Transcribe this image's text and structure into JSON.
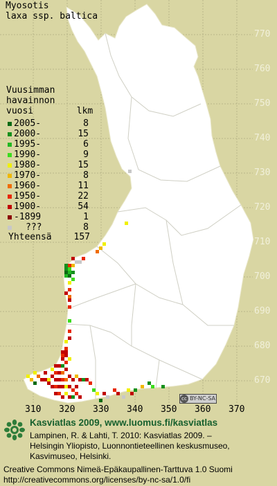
{
  "species": {
    "line1": "Myosotis",
    "line2": "laxa ssp. baltica"
  },
  "legend": {
    "header": [
      "Vuusimman",
      "havainnon",
      "vuosi        lkm"
    ],
    "rows": [
      {
        "label": "2005-",
        "count": "8",
        "color": "#0a6a14"
      },
      {
        "label": "2000-",
        "count": "15",
        "color": "#14901c"
      },
      {
        "label": "1995-",
        "count": "6",
        "color": "#22b822"
      },
      {
        "label": "1990-",
        "count": "9",
        "color": "#3cdc1e"
      },
      {
        "label": "1980-",
        "count": "15",
        "color": "#f0f000"
      },
      {
        "label": "1970-",
        "count": "8",
        "color": "#f0b800"
      },
      {
        "label": "1960-",
        "count": "11",
        "color": "#f06c00"
      },
      {
        "label": "1950-",
        "count": "22",
        "color": "#e82800"
      },
      {
        "label": "1900-",
        "count": "54",
        "color": "#c00000"
      },
      {
        "label": "-1899",
        "count": "1",
        "color": "#8a0000"
      },
      {
        "label": "???",
        "count": "8",
        "color": "#c8c8c8"
      }
    ],
    "total_label": "Yhteensä",
    "total_count": "157"
  },
  "y_ticks": [
    "770",
    "760",
    "750",
    "740",
    "730",
    "720",
    "710",
    "700",
    "690",
    "680",
    "670"
  ],
  "x_ticks": [
    "310",
    "320",
    "330",
    "340",
    "350",
    "360",
    "370"
  ],
  "license_badge": {
    "symbol": "cc",
    "text": "BY-NC-SA"
  },
  "footer": {
    "title": "Kasviatlas 2009, www.luomus.fi/kasviatlas",
    "citation": [
      "Lampinen, R. & Lahti, T. 2010: Kasviatlas 2009. –",
      "Helsingin Yliopisto, Luonnontieteellinen keskusmuseo,",
      "Kasvimuseo, Helsinki."
    ],
    "license": [
      "Creative Commons Nimeä-Epäkaupallinen-Tarttuva 1.0 Suomi",
      "http://creativecommons.org/licenses/by-nc-sa/1.0/fi"
    ]
  },
  "colors": {
    "background": "#d9d6a3",
    "land": "#ffffff",
    "borders": "#cfcfc4",
    "footer_green": "#17602e"
  }
}
